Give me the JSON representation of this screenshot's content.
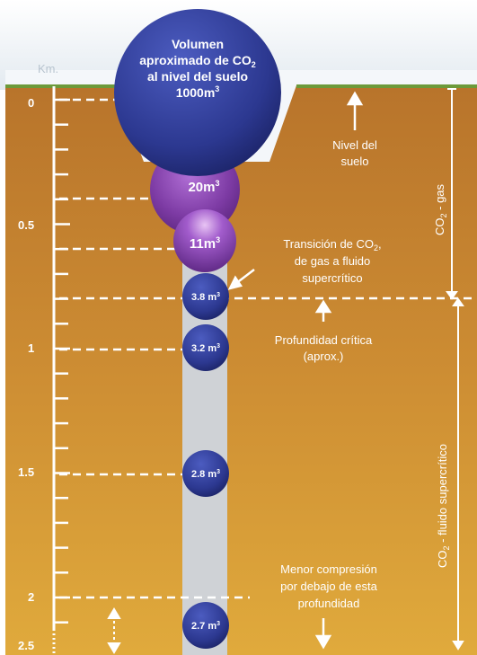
{
  "axis": {
    "unit_label": "Km.",
    "depth_ticks": [
      "0",
      "0.5",
      "1",
      "1.5",
      "2",
      "2.5"
    ]
  },
  "bubbles": {
    "surface": {
      "line1": "Volumen",
      "line2": "aproximado de CO",
      "line2_sub": "2",
      "line3": "al nivel del suelo",
      "line4": "1000m",
      "line4_sup": "3"
    },
    "b20": {
      "text": "20m",
      "sup": "3"
    },
    "b11": {
      "text": "11m",
      "sup": "3"
    },
    "b38": {
      "text": "3.8 m",
      "sup": "3"
    },
    "b32": {
      "text": "3.2 m",
      "sup": "3"
    },
    "b28": {
      "text": "2.8 m",
      "sup": "3"
    },
    "b27": {
      "text": "2.7 m",
      "sup": "3"
    }
  },
  "annotations": {
    "ground_level": [
      "Nivel del",
      "suelo"
    ],
    "transition": {
      "line1": "Transición de CO",
      "line1_sub": "2",
      "line1_tail": ",",
      "line2": "de gas a fluido",
      "line3": "supercrítico"
    },
    "critical_depth": [
      "Profundidad crítica",
      "(aprox.)"
    ],
    "less_compression": [
      "Menor compresión",
      "por debajo de esta",
      "profundidad"
    ]
  },
  "phases": {
    "gas": {
      "pre": "CO",
      "sub": "2",
      "post": " - gas"
    },
    "supercritical": {
      "pre": "CO",
      "sub": "2",
      "post": " - fluido supercrítico"
    }
  },
  "colors": {
    "sky": "#f2f5f8",
    "soil_top": "#b8742b",
    "soil_bottom": "#e0aa3c",
    "grass": "#6c9a3a",
    "well": "#cfd2d6",
    "bubble_blue": "#2f3c9a",
    "bubble_purple": "#7d3ba4"
  }
}
